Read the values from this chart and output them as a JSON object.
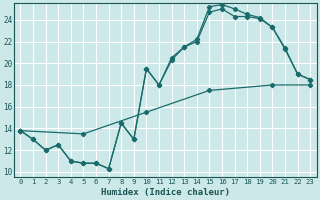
{
  "xlabel": "Humidex (Indice chaleur)",
  "bg_color": "#cce8e8",
  "grid_color": "#ffffff",
  "line_color": "#1a6b6b",
  "xlim": [
    -0.5,
    23.5
  ],
  "ylim": [
    9.5,
    25.5
  ],
  "xticks": [
    0,
    1,
    2,
    3,
    4,
    5,
    6,
    7,
    8,
    9,
    10,
    11,
    12,
    13,
    14,
    15,
    16,
    17,
    18,
    19,
    20,
    21,
    22,
    23
  ],
  "yticks": [
    10,
    12,
    14,
    16,
    18,
    20,
    22,
    24
  ],
  "line1_x": [
    0,
    1,
    2,
    3,
    4,
    5,
    6,
    7,
    8,
    9,
    10,
    11,
    12,
    13,
    14,
    15,
    16,
    17,
    18,
    19,
    20,
    21,
    22,
    23
  ],
  "line1_y": [
    13.8,
    13.0,
    12.0,
    12.5,
    11.0,
    10.8,
    10.8,
    10.3,
    14.5,
    13.0,
    19.5,
    18.0,
    20.3,
    21.5,
    22.0,
    24.7,
    25.0,
    24.3,
    24.3,
    24.1,
    23.3,
    21.3,
    19.0,
    18.5
  ],
  "line2_x": [
    0,
    1,
    2,
    3,
    4,
    5,
    6,
    7,
    8,
    9,
    10,
    11,
    12,
    13,
    14,
    15,
    16,
    17,
    18,
    19,
    20,
    21,
    22,
    23
  ],
  "line2_y": [
    13.8,
    13.0,
    12.0,
    12.5,
    11.0,
    10.8,
    10.8,
    10.3,
    14.5,
    13.0,
    19.5,
    18.0,
    20.5,
    21.5,
    22.2,
    25.2,
    25.4,
    25.0,
    24.5,
    24.2,
    23.3,
    21.4,
    19.0,
    18.5
  ],
  "line3_x": [
    0,
    5,
    10,
    15,
    20,
    23
  ],
  "line3_y": [
    13.8,
    13.5,
    15.5,
    17.5,
    18.0,
    18.0
  ],
  "xtick_labels": [
    "0",
    "1",
    "2",
    "3",
    "4",
    "5",
    "6",
    "7",
    "8",
    "9",
    "10",
    "11",
    "12",
    "13",
    "14",
    "15",
    "16",
    "17",
    "18",
    "19",
    "20",
    "21",
    "22",
    "23"
  ],
  "ytick_labels": [
    "10",
    "12",
    "14",
    "16",
    "18",
    "20",
    "22",
    "24"
  ]
}
